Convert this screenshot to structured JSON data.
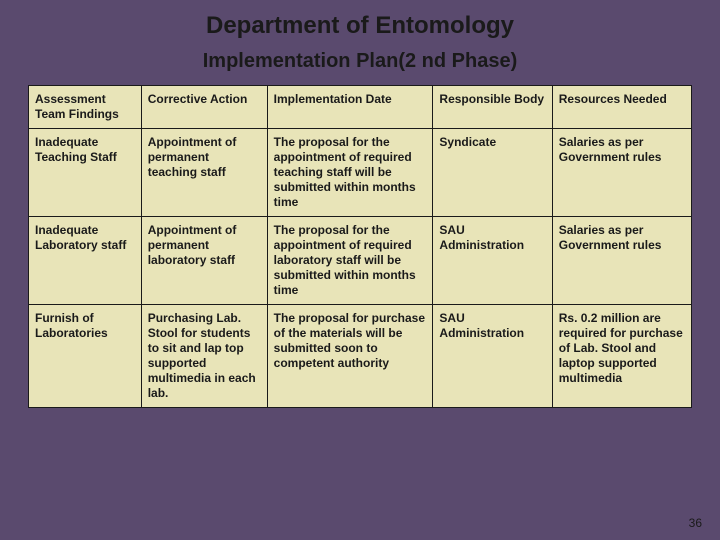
{
  "title": "Department of Entomology",
  "subtitle": "Implementation Plan(2 nd Phase)",
  "page_number": "36",
  "table": {
    "background_color": "#e8e4b8",
    "border_color": "#1a1a1a",
    "font_size": 12,
    "font_weight": "bold",
    "column_widths_pct": [
      17,
      19,
      25,
      18,
      21
    ],
    "columns": [
      "Assessment Team Findings",
      "Corrective Action",
      "Implementation Date",
      "Responsible Body",
      "Resources Needed"
    ],
    "rows": [
      [
        "Inadequate Teaching Staff",
        "Appointment of permanent teaching staff",
        "The proposal for the appointment of required teaching staff will be submitted within months time",
        "Syndicate",
        "Salaries as per Government rules"
      ],
      [
        "Inadequate Laboratory staff",
        "Appointment of permanent laboratory staff",
        "The proposal for the appointment of required laboratory staff will be submitted within months time",
        "SAU Administration",
        "Salaries as per Government rules"
      ],
      [
        "Furnish of Laboratories",
        "Purchasing Lab. Stool for students to sit and lap top supported multimedia in each lab.",
        "The proposal for purchase of the materials will be submitted soon to competent authority",
        "SAU Administration",
        "Rs. 0.2 million are required for purchase of Lab. Stool and laptop supported multimedia"
      ]
    ]
  },
  "slide_background_color": "#5a4a6e",
  "title_fontsize": 24,
  "subtitle_fontsize": 20,
  "text_color": "#1a1a1a"
}
